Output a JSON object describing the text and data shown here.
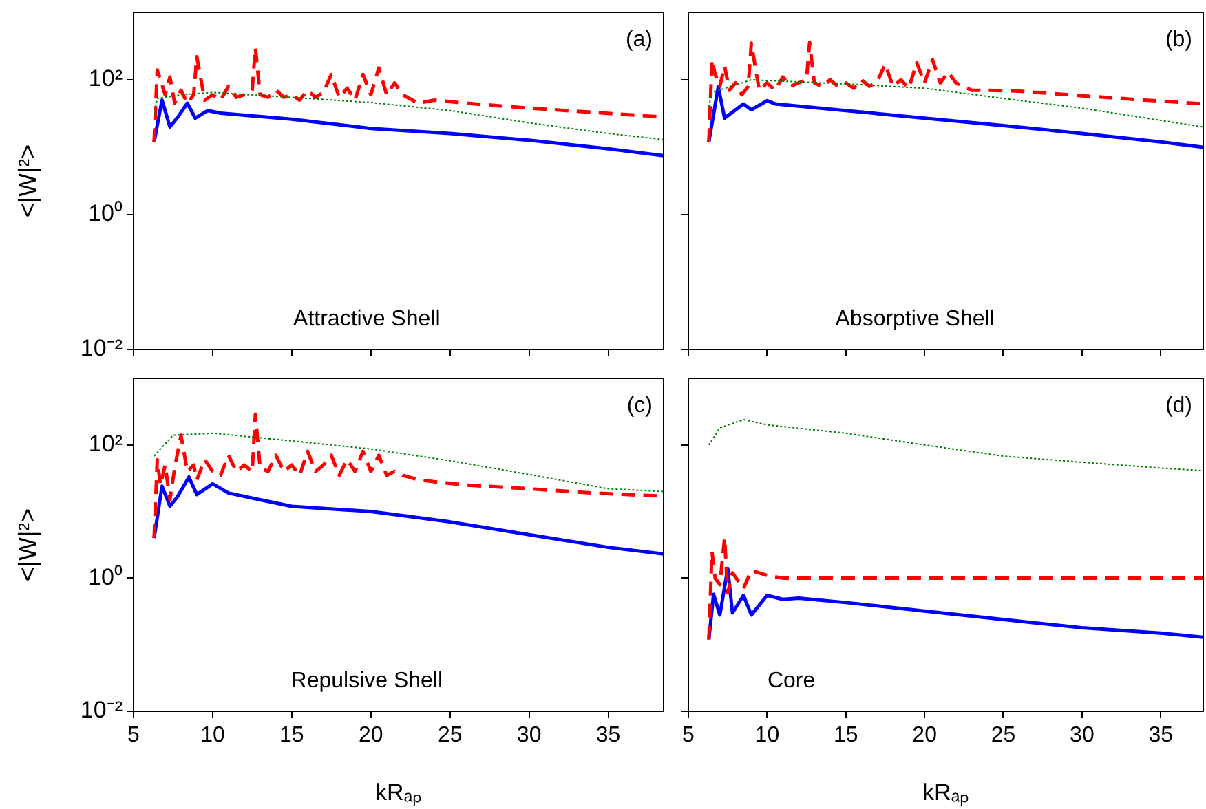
{
  "chart_data": [
    {
      "type": "line",
      "ylabel": "<|W|²>",
      "annotations": [
        "(a)",
        "Attractive Shell"
      ],
      "log": "y",
      "xlim": [
        5,
        38.5
      ],
      "xticks": [
        5,
        10,
        15,
        20,
        25,
        30,
        35
      ],
      "ylim": [
        0.01,
        1000
      ],
      "yticks": [
        {
          "value": 0.01,
          "label": "10⁻²"
        },
        {
          "value": 1,
          "label": "10⁰"
        },
        {
          "value": 100,
          "label": "10²"
        }
      ],
      "tick_labels": "y",
      "grid": false,
      "legend": false,
      "series": [
        {
          "color": "#ff0000",
          "line_style": "dashed",
          "x": [
            6.3,
            6.5,
            6.7,
            7.0,
            7.3,
            7.6,
            8.0,
            8.4,
            8.8,
            9.0,
            9.5,
            10.0,
            10.5,
            11.0,
            11.5,
            12.0,
            12.5,
            12.7,
            13.0,
            13.5,
            14.0,
            14.5,
            15.0,
            15.5,
            16.0,
            16.5,
            17.0,
            17.5,
            18.0,
            18.5,
            19.0,
            19.5,
            20.0,
            20.5,
            21.0,
            21.5,
            22.0,
            23.0,
            24.0,
            26.0,
            30.0,
            34.0,
            38.5
          ],
          "values": [
            12,
            140,
            100,
            60,
            110,
            45,
            70,
            45,
            60,
            220,
            50,
            60,
            50,
            80,
            55,
            60,
            70,
            300,
            60,
            55,
            70,
            55,
            60,
            50,
            70,
            55,
            65,
            120,
            55,
            75,
            50,
            120,
            60,
            150,
            60,
            90,
            60,
            45,
            50,
            45,
            38,
            33,
            28
          ]
        },
        {
          "color": "#008000",
          "line_style": "dotted",
          "x": [
            6.3,
            6.5,
            8,
            10,
            15,
            20,
            25,
            30,
            35,
            38.5
          ],
          "values": [
            30,
            53,
            60,
            65,
            55,
            46,
            35,
            23,
            16,
            13
          ]
        },
        {
          "color": "#0000ff",
          "line_style": "solid",
          "x": [
            6.3,
            6.8,
            7.3,
            7.8,
            8.4,
            8.9,
            9.7,
            10.5,
            15,
            20,
            25,
            30,
            35,
            38.5
          ],
          "values": [
            12,
            50,
            20,
            28,
            45,
            27,
            35,
            32,
            26,
            19,
            16,
            12.7,
            9.5,
            7.5
          ]
        }
      ]
    },
    {
      "type": "line",
      "annotations": [
        "(b)",
        "Absorptive Shell"
      ],
      "log": "y",
      "xlim": [
        5,
        37.7
      ],
      "xticks": [
        5,
        10,
        15,
        20,
        25,
        30,
        35
      ],
      "ylim": [
        0.01,
        1000
      ],
      "yticks": [
        {
          "value": 0.01,
          "label": null
        },
        {
          "value": 1,
          "label": null
        },
        {
          "value": 100,
          "label": null
        }
      ],
      "tick_labels": false,
      "grid": false,
      "legend": false,
      "series": [
        {
          "color": "#ff0000",
          "line_style": "dashed",
          "x": [
            6.3,
            6.5,
            6.7,
            7.0,
            7.3,
            7.6,
            8.0,
            8.4,
            8.8,
            9.0,
            9.5,
            10.0,
            10.5,
            11.0,
            11.5,
            12.0,
            12.5,
            12.7,
            13.0,
            13.5,
            14.0,
            14.5,
            15.0,
            15.5,
            16.0,
            16.5,
            17.0,
            17.5,
            18.0,
            18.5,
            19.0,
            19.5,
            20.0,
            20.5,
            21.0,
            21.5,
            22.0,
            23.0,
            24.0,
            26.0,
            30.0,
            34.0,
            37.7
          ],
          "values": [
            12,
            200,
            120,
            80,
            160,
            70,
            90,
            60,
            80,
            350,
            70,
            90,
            70,
            110,
            80,
            90,
            100,
            360,
            90,
            80,
            100,
            80,
            90,
            75,
            100,
            80,
            95,
            170,
            80,
            100,
            75,
            180,
            90,
            200,
            90,
            130,
            90,
            70,
            70,
            68,
            58,
            50,
            44
          ]
        },
        {
          "color": "#008000",
          "line_style": "dotted",
          "x": [
            6.3,
            6.5,
            9,
            15,
            20,
            25,
            30,
            35,
            37.7
          ],
          "values": [
            40,
            65,
            100,
            87,
            75,
            53,
            38,
            25,
            20
          ]
        },
        {
          "color": "#0000ff",
          "line_style": "solid",
          "x": [
            6.3,
            6.9,
            7.3,
            8.5,
            9,
            10,
            10.5,
            15,
            20,
            25,
            30,
            35,
            37.7
          ],
          "values": [
            12,
            79,
            27,
            44,
            36,
            49,
            44,
            35,
            27,
            21,
            16,
            12,
            10
          ]
        }
      ]
    },
    {
      "type": "line",
      "xlabel": "kRₐₚ",
      "ylabel": "<|W|²>",
      "annotations": [
        "(c)",
        "Repulsive Shell"
      ],
      "log": "y",
      "xlim": [
        5,
        38.5
      ],
      "xticks": [
        5,
        10,
        15,
        20,
        25,
        30,
        35
      ],
      "ylim": [
        0.01,
        1000
      ],
      "yticks": [
        {
          "value": 0.01,
          "label": "10⁻²"
        },
        {
          "value": 1,
          "label": "10⁰"
        },
        {
          "value": 100,
          "label": "10²"
        }
      ],
      "grid": false,
      "legend": false,
      "series": [
        {
          "color": "#ff0000",
          "line_style": "dashed",
          "x": [
            6.3,
            6.5,
            6.7,
            7.0,
            7.3,
            7.6,
            8.0,
            8.4,
            8.8,
            9.0,
            9.5,
            10.0,
            10.5,
            11.0,
            11.5,
            12.0,
            12.5,
            12.7,
            13.0,
            13.5,
            14.0,
            14.5,
            15.0,
            15.5,
            16.0,
            16.5,
            17.0,
            17.5,
            18.0,
            18.5,
            19.0,
            19.5,
            20.0,
            20.5,
            21.0,
            21.5,
            22.0,
            23.0,
            24.0,
            26.0,
            30.0,
            34.0,
            38.5
          ],
          "values": [
            4,
            60,
            25,
            50,
            15,
            45,
            140,
            40,
            50,
            30,
            60,
            40,
            35,
            70,
            40,
            50,
            40,
            290,
            45,
            40,
            70,
            40,
            50,
            35,
            80,
            40,
            50,
            70,
            35,
            60,
            40,
            80,
            40,
            70,
            35,
            40,
            35,
            30,
            28,
            25,
            22,
            19,
            17
          ]
        },
        {
          "color": "#008000",
          "line_style": "dotted",
          "x": [
            6.3,
            7.5,
            10,
            15,
            20,
            25,
            30,
            35,
            38.5
          ],
          "values": [
            68,
            140,
            150,
            115,
            87,
            58,
            36,
            22,
            20
          ]
        },
        {
          "color": "#0000ff",
          "line_style": "solid",
          "x": [
            6.3,
            6.8,
            7.3,
            7.8,
            8.5,
            9,
            10,
            11,
            13,
            15,
            20,
            25,
            30,
            35,
            38.5
          ],
          "values": [
            4,
            24,
            12,
            17,
            33,
            18,
            26,
            19,
            15,
            12,
            10,
            7,
            4.5,
            2.9,
            2.3
          ]
        }
      ]
    },
    {
      "type": "line",
      "xlabel": "kRₐₚ",
      "annotations": [
        "(d)",
        "Core"
      ],
      "log": "y",
      "xlim": [
        5,
        37.7
      ],
      "xticks": [
        5,
        10,
        15,
        20,
        25,
        30,
        35
      ],
      "ylim": [
        0.01,
        1000
      ],
      "yticks": [
        {
          "value": 0.01,
          "label": null
        },
        {
          "value": 1,
          "label": null
        },
        {
          "value": 100,
          "label": null
        }
      ],
      "tick_labels": "x",
      "grid": false,
      "legend": false,
      "series": [
        {
          "color": "#008000",
          "line_style": "dotted",
          "x": [
            6.3,
            7,
            8.5,
            10,
            15,
            20,
            25,
            30,
            35,
            37.7
          ],
          "values": [
            100,
            180,
            240,
            200,
            150,
            100,
            68,
            55,
            45,
            41
          ]
        },
        {
          "color": "#ff0000",
          "line_style": "dashed",
          "x": [
            6.3,
            6.5,
            6.7,
            7.0,
            7.3,
            7.5,
            7.8,
            8.5,
            9,
            10,
            11,
            15,
            20,
            25,
            30,
            37.7
          ],
          "values": [
            0.12,
            2.5,
            1,
            0.8,
            4,
            0.6,
            1.2,
            0.7,
            1.3,
            1.1,
            1,
            1,
            1,
            1,
            1,
            1
          ]
        },
        {
          "color": "#0000ff",
          "line_style": "solid",
          "x": [
            6.3,
            6.6,
            7,
            7.5,
            7.8,
            8.5,
            9,
            10,
            11,
            12,
            15,
            20,
            25,
            30,
            35,
            37.7
          ],
          "values": [
            0.12,
            0.57,
            0.28,
            1.4,
            0.3,
            0.55,
            0.28,
            0.55,
            0.48,
            0.5,
            0.43,
            0.32,
            0.24,
            0.18,
            0.15,
            0.13
          ]
        }
      ]
    }
  ]
}
